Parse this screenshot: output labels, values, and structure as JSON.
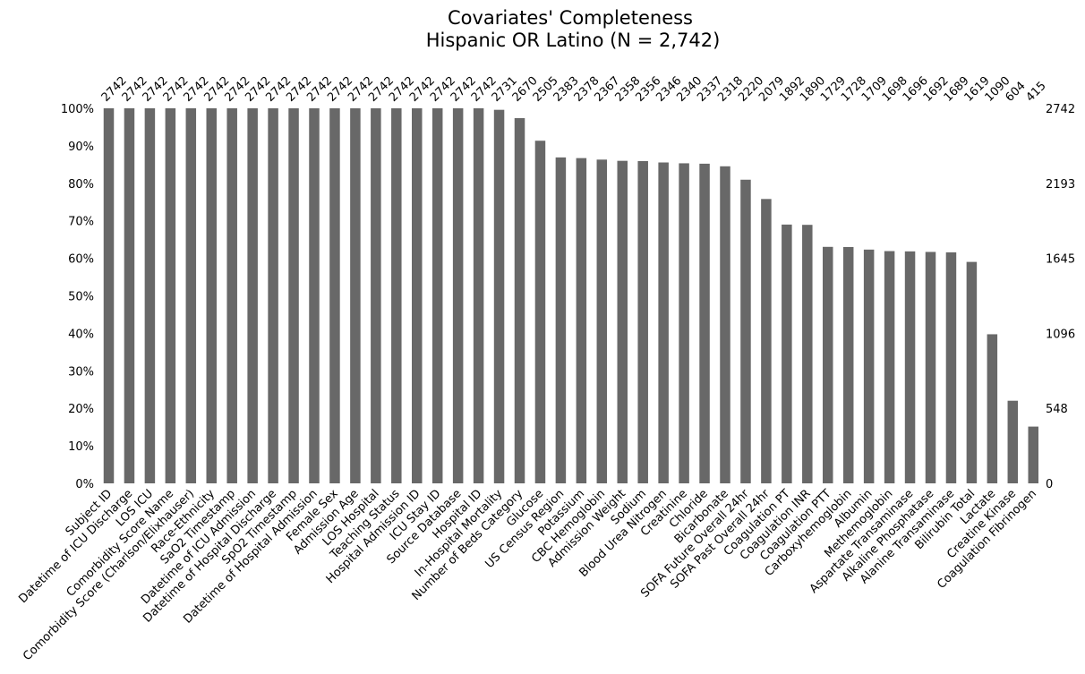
{
  "chart_data": {
    "type": "bar",
    "title": "Covariates' Completeness",
    "subtitle": "Hispanic OR Latino (N = 2,742)",
    "xlabel": "",
    "ylabel": "",
    "ylim": [
      0,
      1
    ],
    "left_ticks": [
      "0%",
      "10%",
      "20%",
      "30%",
      "40%",
      "50%",
      "60%",
      "70%",
      "80%",
      "90%",
      "100%"
    ],
    "right_ticks": [
      {
        "value": 0.0,
        "label": "0"
      },
      {
        "value": 0.2,
        "label": "548"
      },
      {
        "value": 0.4,
        "label": "1096"
      },
      {
        "value": 0.6,
        "label": "1645"
      },
      {
        "value": 0.8,
        "label": "2193"
      },
      {
        "value": 1.0,
        "label": "2742"
      }
    ],
    "total": 2742,
    "bar_color": "#686868",
    "grid": false,
    "categories": [
      "Subject ID",
      "Datetime of ICU Discharge",
      "LOS ICU",
      "Comorbidity Score Name",
      "Comorbidity Score (Charlson/Elixhauser)",
      "Race-Ethnicity",
      "SaO2 Timestamp",
      "Datetime of ICU Admission",
      "Datetime of Hospital Discharge",
      "SpO2 Timestamp",
      "Datetime of Hospital Admission",
      "Female Sex",
      "Admission Age",
      "LOS Hospital",
      "Teaching Status",
      "Hospital Admission ID",
      "ICU Stay ID",
      "Source Database",
      "Hospital ID",
      "In-Hospital Mortality",
      "Number of Beds Category",
      "Glucose",
      "US Census Region",
      "Potassium",
      "CBC Hemoglobin",
      "Admission Weight",
      "Sodium",
      "Blood Urea Nitrogen",
      "Creatinine",
      "Chloride",
      "Bicarbonate",
      "SOFA Future Overall 24hr",
      "SOFA Past Overall 24hr",
      "Coagulation PT",
      "Coagulation INR",
      "Coagulation PTT",
      "Carboxyhemoglobin",
      "Albumin",
      "Methemoglobin",
      "Aspartate Transaminase",
      "Alkaline Phosphatase",
      "Alanine Transaminase",
      "Bilirubin Total",
      "Lactate",
      "Creatine Kinase",
      "Coagulation Fibrinogen"
    ],
    "values": [
      2742,
      2742,
      2742,
      2742,
      2742,
      2742,
      2742,
      2742,
      2742,
      2742,
      2742,
      2742,
      2742,
      2742,
      2742,
      2742,
      2742,
      2742,
      2742,
      2731,
      2670,
      2505,
      2383,
      2378,
      2367,
      2358,
      2356,
      2346,
      2340,
      2337,
      2318,
      2220,
      2079,
      1892,
      1890,
      1729,
      1728,
      1709,
      1698,
      1696,
      1692,
      1689,
      1619,
      1090,
      604,
      415
    ]
  }
}
